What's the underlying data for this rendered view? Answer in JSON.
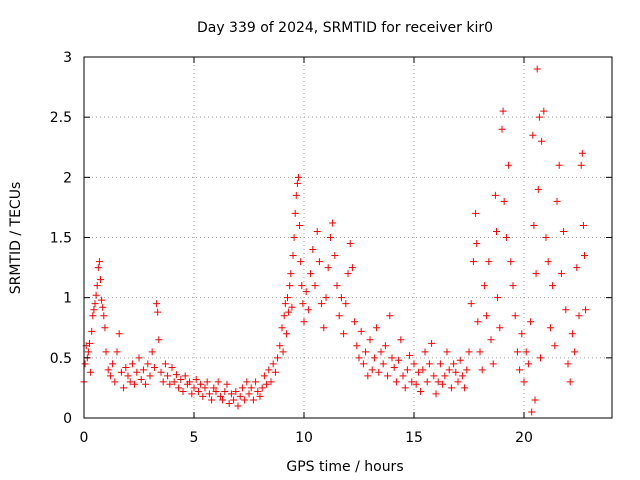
{
  "chart_data": {
    "type": "scatter",
    "title": "Day 339 of 2024, SRMTID for receiver kir0",
    "xlabel": "GPS time / hours",
    "ylabel": "SRMTID / TECUs",
    "xlim": [
      0,
      24
    ],
    "ylim": [
      0,
      3
    ],
    "xticks": [
      0,
      5,
      10,
      15,
      20
    ],
    "yticks": [
      0,
      0.5,
      1,
      1.5,
      2,
      2.5,
      3
    ],
    "xtick_labels": [
      "0",
      "5",
      "10",
      "15",
      "20"
    ],
    "ytick_labels": [
      "0",
      "0.5",
      "1",
      "1.5",
      "2",
      "2.5",
      "3"
    ],
    "grid": true,
    "marker": "plus",
    "color": "#ff0000",
    "series": [
      {
        "name": "kir0",
        "points": [
          [
            0.0,
            0.3
          ],
          [
            0.05,
            0.45
          ],
          [
            0.1,
            0.6
          ],
          [
            0.15,
            0.5
          ],
          [
            0.2,
            0.55
          ],
          [
            0.25,
            0.62
          ],
          [
            0.3,
            0.38
          ],
          [
            0.35,
            0.72
          ],
          [
            0.4,
            0.85
          ],
          [
            0.45,
            0.9
          ],
          [
            0.5,
            0.95
          ],
          [
            0.55,
            1.02
          ],
          [
            0.6,
            1.1
          ],
          [
            0.65,
            1.25
          ],
          [
            0.7,
            1.3
          ],
          [
            0.75,
            1.15
          ],
          [
            0.8,
            0.98
          ],
          [
            0.85,
            0.92
          ],
          [
            0.9,
            0.85
          ],
          [
            0.95,
            0.75
          ],
          [
            1.0,
            0.55
          ],
          [
            1.1,
            0.4
          ],
          [
            1.2,
            0.35
          ],
          [
            1.3,
            0.45
          ],
          [
            1.4,
            0.3
          ],
          [
            1.5,
            0.55
          ],
          [
            1.6,
            0.7
          ],
          [
            1.7,
            0.38
          ],
          [
            1.8,
            0.25
          ],
          [
            1.9,
            0.42
          ],
          [
            2.0,
            0.35
          ],
          [
            2.1,
            0.3
          ],
          [
            2.2,
            0.45
          ],
          [
            2.3,
            0.28
          ],
          [
            2.4,
            0.38
          ],
          [
            2.5,
            0.5
          ],
          [
            2.6,
            0.32
          ],
          [
            2.7,
            0.4
          ],
          [
            2.8,
            0.28
          ],
          [
            2.9,
            0.45
          ],
          [
            3.0,
            0.35
          ],
          [
            3.1,
            0.55
          ],
          [
            3.2,
            0.42
          ],
          [
            3.3,
            0.95
          ],
          [
            3.35,
            0.88
          ],
          [
            3.4,
            0.65
          ],
          [
            3.5,
            0.38
          ],
          [
            3.6,
            0.3
          ],
          [
            3.7,
            0.45
          ],
          [
            3.8,
            0.35
          ],
          [
            3.9,
            0.28
          ],
          [
            4.0,
            0.42
          ],
          [
            4.1,
            0.3
          ],
          [
            4.2,
            0.36
          ],
          [
            4.3,
            0.25
          ],
          [
            4.4,
            0.32
          ],
          [
            4.5,
            0.22
          ],
          [
            4.6,
            0.35
          ],
          [
            4.7,
            0.28
          ],
          [
            4.8,
            0.3
          ],
          [
            4.9,
            0.2
          ],
          [
            5.0,
            0.25
          ],
          [
            5.1,
            0.32
          ],
          [
            5.2,
            0.22
          ],
          [
            5.3,
            0.28
          ],
          [
            5.4,
            0.18
          ],
          [
            5.5,
            0.25
          ],
          [
            5.6,
            0.3
          ],
          [
            5.7,
            0.2
          ],
          [
            5.8,
            0.15
          ],
          [
            5.9,
            0.25
          ],
          [
            6.0,
            0.22
          ],
          [
            6.1,
            0.3
          ],
          [
            6.2,
            0.18
          ],
          [
            6.3,
            0.15
          ],
          [
            6.4,
            0.22
          ],
          [
            6.5,
            0.28
          ],
          [
            6.6,
            0.12
          ],
          [
            6.7,
            0.2
          ],
          [
            6.8,
            0.15
          ],
          [
            6.9,
            0.22
          ],
          [
            7.0,
            0.1
          ],
          [
            7.1,
            0.18
          ],
          [
            7.2,
            0.25
          ],
          [
            7.3,
            0.15
          ],
          [
            7.4,
            0.3
          ],
          [
            7.5,
            0.2
          ],
          [
            7.6,
            0.25
          ],
          [
            7.7,
            0.15
          ],
          [
            7.8,
            0.3
          ],
          [
            7.9,
            0.22
          ],
          [
            8.0,
            0.18
          ],
          [
            8.1,
            0.25
          ],
          [
            8.2,
            0.35
          ],
          [
            8.3,
            0.28
          ],
          [
            8.4,
            0.4
          ],
          [
            8.5,
            0.3
          ],
          [
            8.6,
            0.45
          ],
          [
            8.7,
            0.38
          ],
          [
            8.8,
            0.5
          ],
          [
            8.9,
            0.6
          ],
          [
            9.0,
            0.75
          ],
          [
            9.05,
            0.55
          ],
          [
            9.1,
            0.85
          ],
          [
            9.15,
            0.95
          ],
          [
            9.2,
            0.7
          ],
          [
            9.25,
            1.0
          ],
          [
            9.3,
            0.88
          ],
          [
            9.35,
            1.1
          ],
          [
            9.4,
            1.2
          ],
          [
            9.45,
            0.92
          ],
          [
            9.5,
            1.35
          ],
          [
            9.55,
            1.5
          ],
          [
            9.6,
            1.7
          ],
          [
            9.65,
            1.85
          ],
          [
            9.7,
            1.95
          ],
          [
            9.75,
            2.0
          ],
          [
            9.8,
            1.6
          ],
          [
            9.85,
            1.3
          ],
          [
            9.9,
            1.1
          ],
          [
            9.95,
            0.95
          ],
          [
            10.0,
            0.8
          ],
          [
            10.1,
            1.05
          ],
          [
            10.2,
            0.9
          ],
          [
            10.3,
            1.2
          ],
          [
            10.4,
            1.4
          ],
          [
            10.5,
            1.1
          ],
          [
            10.6,
            1.55
          ],
          [
            10.7,
            1.3
          ],
          [
            10.8,
            0.95
          ],
          [
            10.9,
            0.75
          ],
          [
            11.0,
            1.0
          ],
          [
            11.1,
            1.25
          ],
          [
            11.2,
            1.5
          ],
          [
            11.3,
            1.62
          ],
          [
            11.4,
            1.35
          ],
          [
            11.5,
            1.1
          ],
          [
            11.6,
            0.85
          ],
          [
            11.7,
            1.0
          ],
          [
            11.8,
            0.7
          ],
          [
            11.9,
            0.95
          ],
          [
            12.0,
            1.2
          ],
          [
            12.1,
            1.45
          ],
          [
            12.2,
            1.25
          ],
          [
            12.3,
            0.8
          ],
          [
            12.4,
            0.6
          ],
          [
            12.5,
            0.5
          ],
          [
            12.6,
            0.72
          ],
          [
            12.7,
            0.45
          ],
          [
            12.8,
            0.55
          ],
          [
            12.9,
            0.35
          ],
          [
            13.0,
            0.65
          ],
          [
            13.1,
            0.4
          ],
          [
            13.2,
            0.5
          ],
          [
            13.3,
            0.75
          ],
          [
            13.4,
            0.38
          ],
          [
            13.5,
            0.55
          ],
          [
            13.6,
            0.45
          ],
          [
            13.7,
            0.6
          ],
          [
            13.8,
            0.35
          ],
          [
            13.9,
            0.85
          ],
          [
            14.0,
            0.5
          ],
          [
            14.1,
            0.42
          ],
          [
            14.2,
            0.3
          ],
          [
            14.3,
            0.48
          ],
          [
            14.4,
            0.65
          ],
          [
            14.5,
            0.35
          ],
          [
            14.6,
            0.25
          ],
          [
            14.7,
            0.4
          ],
          [
            14.8,
            0.52
          ],
          [
            14.9,
            0.3
          ],
          [
            15.0,
            0.45
          ],
          [
            15.1,
            0.28
          ],
          [
            15.2,
            0.38
          ],
          [
            15.3,
            0.22
          ],
          [
            15.4,
            0.4
          ],
          [
            15.5,
            0.55
          ],
          [
            15.6,
            0.3
          ],
          [
            15.7,
            0.45
          ],
          [
            15.8,
            0.62
          ],
          [
            15.9,
            0.35
          ],
          [
            16.0,
            0.2
          ],
          [
            16.1,
            0.3
          ],
          [
            16.2,
            0.45
          ],
          [
            16.3,
            0.28
          ],
          [
            16.4,
            0.35
          ],
          [
            16.5,
            0.55
          ],
          [
            16.6,
            0.4
          ],
          [
            16.7,
            0.25
          ],
          [
            16.8,
            0.45
          ],
          [
            16.9,
            0.38
          ],
          [
            17.0,
            0.3
          ],
          [
            17.1,
            0.48
          ],
          [
            17.2,
            0.35
          ],
          [
            17.3,
            0.25
          ],
          [
            17.4,
            0.4
          ],
          [
            17.5,
            0.55
          ],
          [
            17.6,
            0.95
          ],
          [
            17.7,
            1.3
          ],
          [
            17.8,
            1.7
          ],
          [
            17.85,
            1.45
          ],
          [
            17.9,
            0.8
          ],
          [
            18.0,
            0.55
          ],
          [
            18.1,
            0.4
          ],
          [
            18.2,
            1.1
          ],
          [
            18.3,
            0.85
          ],
          [
            18.4,
            1.3
          ],
          [
            18.5,
            0.65
          ],
          [
            18.6,
            0.45
          ],
          [
            18.7,
            1.85
          ],
          [
            18.75,
            1.55
          ],
          [
            18.8,
            1.0
          ],
          [
            18.9,
            0.75
          ],
          [
            19.0,
            2.4
          ],
          [
            19.05,
            2.55
          ],
          [
            19.1,
            1.8
          ],
          [
            19.2,
            1.5
          ],
          [
            19.3,
            2.1
          ],
          [
            19.4,
            1.3
          ],
          [
            19.5,
            1.1
          ],
          [
            19.6,
            0.85
          ],
          [
            19.7,
            0.55
          ],
          [
            19.8,
            0.4
          ],
          [
            19.9,
            0.7
          ],
          [
            20.0,
            0.3
          ],
          [
            20.1,
            0.55
          ],
          [
            20.2,
            0.45
          ],
          [
            20.3,
            0.8
          ],
          [
            20.35,
            0.05
          ],
          [
            20.4,
            2.35
          ],
          [
            20.45,
            1.6
          ],
          [
            20.5,
            0.15
          ],
          [
            20.55,
            1.2
          ],
          [
            20.6,
            2.9
          ],
          [
            20.65,
            1.9
          ],
          [
            20.7,
            2.5
          ],
          [
            20.75,
            0.5
          ],
          [
            20.8,
            2.3
          ],
          [
            20.9,
            2.55
          ],
          [
            21.0,
            1.5
          ],
          [
            21.1,
            1.3
          ],
          [
            21.2,
            0.75
          ],
          [
            21.3,
            1.1
          ],
          [
            21.4,
            0.6
          ],
          [
            21.5,
            1.8
          ],
          [
            21.6,
            2.1
          ],
          [
            21.7,
            1.2
          ],
          [
            21.8,
            1.55
          ],
          [
            21.9,
            0.9
          ],
          [
            22.0,
            0.45
          ],
          [
            22.1,
            0.3
          ],
          [
            22.2,
            0.7
          ],
          [
            22.3,
            0.55
          ],
          [
            22.4,
            1.25
          ],
          [
            22.5,
            0.85
          ],
          [
            22.6,
            2.1
          ],
          [
            22.65,
            2.2
          ],
          [
            22.7,
            1.6
          ],
          [
            22.75,
            1.35
          ],
          [
            22.8,
            0.9
          ]
        ]
      }
    ]
  }
}
